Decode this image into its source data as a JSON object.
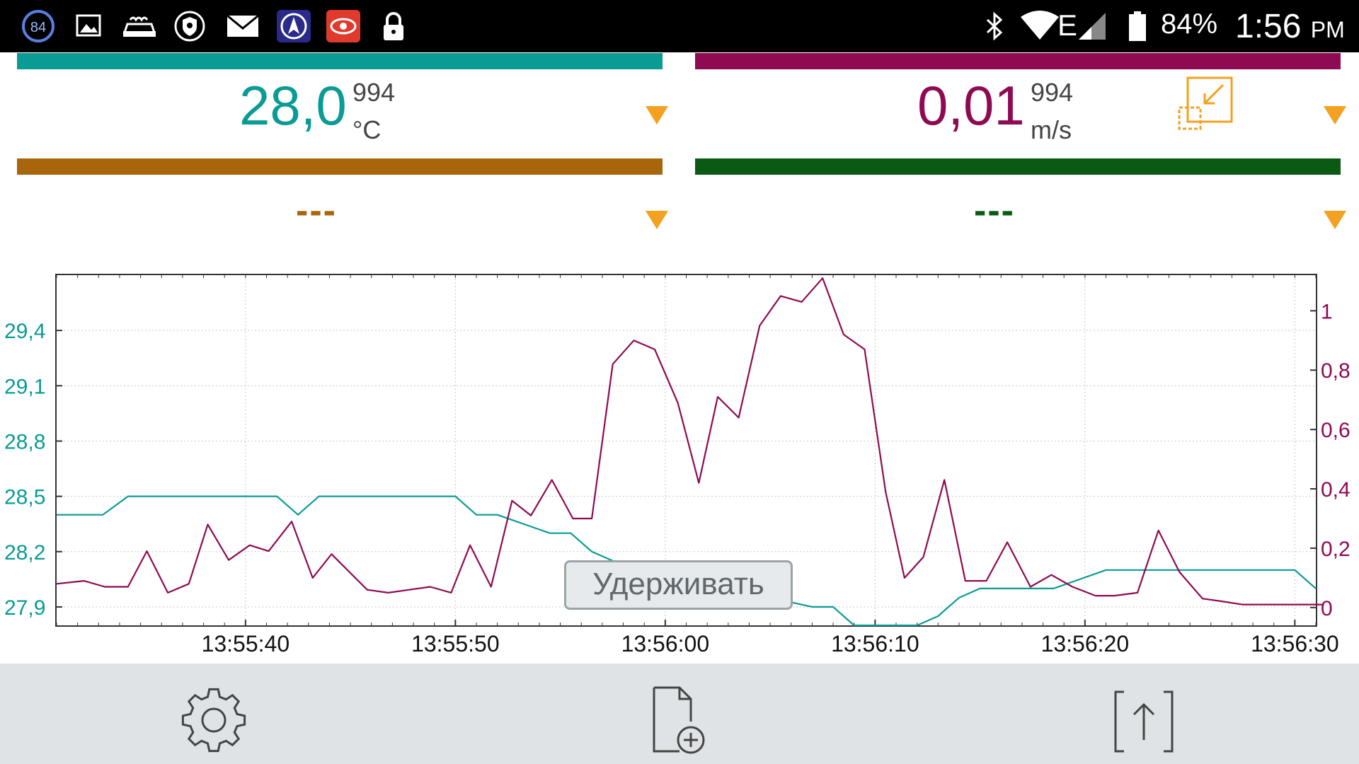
{
  "status_bar": {
    "notification_badge": "84",
    "battery_percent": "84%",
    "network_type": "E",
    "time": "1:56",
    "ampm": "PM",
    "icons": [
      "badge-84-icon",
      "image-icon",
      "car-wash-icon",
      "shield-icon",
      "mail-icon",
      "navigation-app-icon",
      "eye-app-icon",
      "lock-icon",
      "bluetooth-icon",
      "wifi-icon",
      "signal-icon",
      "battery-icon"
    ]
  },
  "channels": [
    {
      "id": "temperature",
      "value": "28,0",
      "count": "994",
      "unit": "°C",
      "color": "#0a9b94"
    },
    {
      "id": "velocity",
      "value": "0,01",
      "count": "994",
      "unit": "m/s",
      "color": "#8e0a52"
    },
    {
      "id": "channel3",
      "value": "---",
      "color": "#a8650c"
    },
    {
      "id": "channel4",
      "value": "---",
      "color": "#0a5a14"
    }
  ],
  "colors": {
    "accent_dropdown": "#f4a020",
    "bottom_bar": "#dfe3e6"
  },
  "hold_button": {
    "label": "Удерживать"
  },
  "chart_data": {
    "type": "line",
    "x_labels": [
      "13:55:40",
      "13:55:50",
      "13:56:00",
      "13:56:10",
      "13:56:20",
      "13:56:30"
    ],
    "x_range": [
      "13:55:31",
      "13:56:31"
    ],
    "y_left": {
      "ticks": [
        "29,4",
        "29,1",
        "28,8",
        "28,5",
        "28,2",
        "27,9"
      ],
      "range": [
        27.8,
        29.7
      ],
      "unit": "°C",
      "color": "#0a9b94"
    },
    "y_right": {
      "ticks": [
        "1",
        "0,8",
        "0,6",
        "0,4",
        "0,2",
        "0"
      ],
      "range": [
        -0.06,
        1.12
      ],
      "unit": "m/s",
      "color": "#8e0a52"
    },
    "grid": true,
    "series": [
      {
        "axis": "left",
        "color": "#0a9b94",
        "x": [
          0,
          0.5,
          2.2,
          3.4,
          10.5,
          11.5,
          12.5,
          19,
          20,
          21,
          23.5,
          24.5,
          25.5,
          27.5,
          28.5,
          31.5,
          32.5,
          34,
          36,
          37,
          38,
          41,
          42,
          42.5,
          43,
          44,
          45.5,
          46.5,
          47.5,
          50,
          51,
          51.5,
          52,
          53,
          54,
          59,
          60
        ],
        "y": [
          28.4,
          28.4,
          28.4,
          28.5,
          28.5,
          28.4,
          28.5,
          28.5,
          28.4,
          28.4,
          28.3,
          28.3,
          28.2,
          28.1,
          28.1,
          28.0,
          28.0,
          27.95,
          27.9,
          27.9,
          27.8,
          27.8,
          27.85,
          27.9,
          27.95,
          28.0,
          28.0,
          28.0,
          28.0,
          28.1,
          28.1,
          28.1,
          28.1,
          28.1,
          28.1,
          28.1,
          28.0
        ]
      },
      {
        "axis": "right",
        "color": "#8e0a52",
        "x": [
          0,
          1.3,
          2.3,
          3.4,
          4.3,
          5.3,
          6.3,
          7.2,
          8.2,
          9.2,
          10.1,
          11.2,
          12.2,
          13.1,
          14.8,
          15.8,
          16.8,
          17.8,
          18.8,
          19.7,
          20.7,
          21.7,
          22.6,
          23.6,
          24.6,
          25.5,
          26.5,
          27.5,
          28.5,
          29.6,
          30.6,
          31.5,
          32.5,
          33.5,
          34.5,
          35.5,
          36.5,
          37.5,
          38.5,
          39.5,
          40.4,
          41.3,
          42.3,
          43.3,
          44.3,
          45.3,
          46.4,
          47.4,
          48.4,
          49.5,
          50.4,
          51.5,
          52.5,
          53.5,
          54.6,
          55.6,
          56.5,
          57.5,
          59.5,
          60.3
        ],
        "y": [
          0.08,
          0.09,
          0.07,
          0.07,
          0.19,
          0.05,
          0.08,
          0.28,
          0.16,
          0.21,
          0.19,
          0.29,
          0.1,
          0.18,
          0.06,
          0.05,
          0.06,
          0.07,
          0.05,
          0.21,
          0.07,
          0.36,
          0.31,
          0.43,
          0.3,
          0.3,
          0.82,
          0.9,
          0.87,
          0.69,
          0.42,
          0.71,
          0.64,
          0.95,
          1.05,
          1.03,
          1.11,
          0.92,
          0.87,
          0.39,
          0.1,
          0.17,
          0.43,
          0.09,
          0.09,
          0.22,
          0.07,
          0.11,
          0.07,
          0.04,
          0.04,
          0.05,
          0.26,
          0.12,
          0.03,
          0.02,
          0.01,
          0.01,
          0.01,
          0.01
        ]
      }
    ]
  },
  "bottom_bar": {
    "items": [
      "settings-gear-icon",
      "new-file-icon",
      "export-icon"
    ]
  }
}
